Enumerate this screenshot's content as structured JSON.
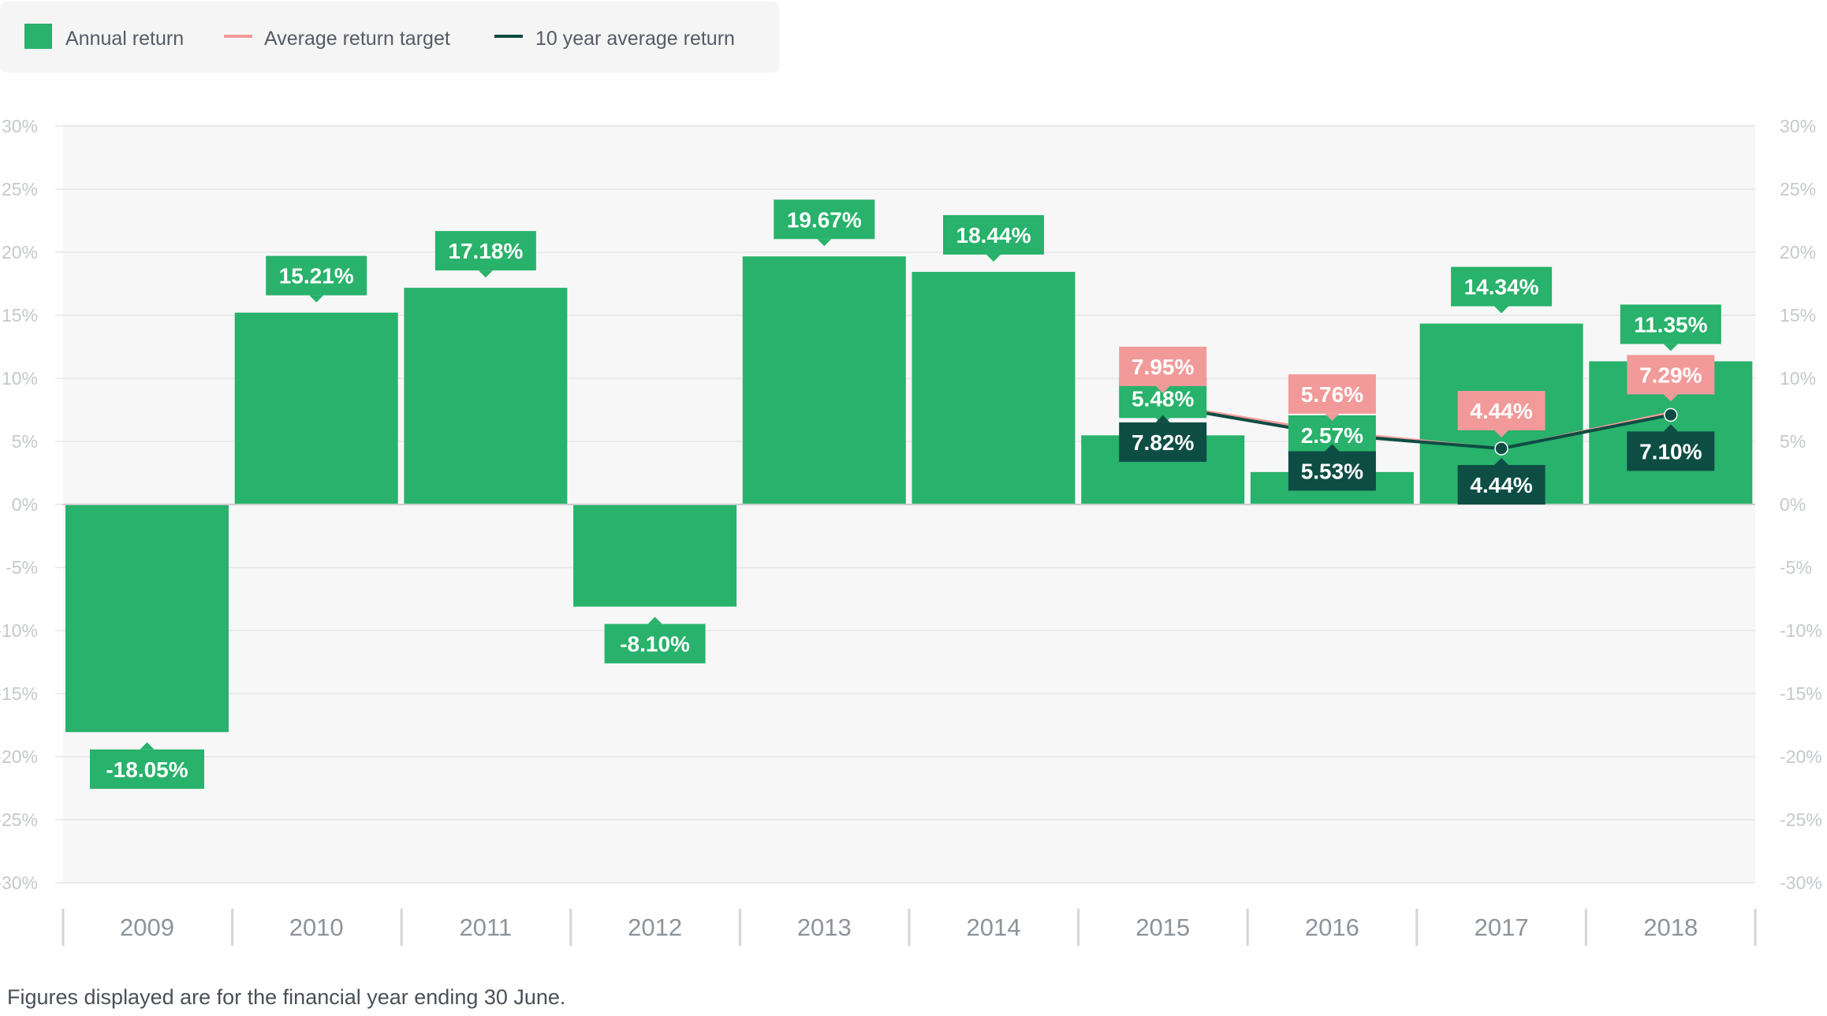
{
  "colors": {
    "bar": "#28b26b",
    "target": "#f29a9a",
    "average": "#0d4d44",
    "grid": "#e5e6e8",
    "plot_bg": "#f7f7f7",
    "legend_bg": "#f5f5f5"
  },
  "legend": {
    "items": [
      {
        "label": "Annual return",
        "marker": "square",
        "color": "#28b26b"
      },
      {
        "label": "Average return target",
        "marker": "line",
        "color": "#f29a9a"
      },
      {
        "label": "10 year average return",
        "marker": "line",
        "color": "#0d4d44"
      }
    ]
  },
  "footnote": "Figures displayed are for the financial year ending 30 June.",
  "chart_data": {
    "type": "bar",
    "categories": [
      "2009",
      "2010",
      "2011",
      "2012",
      "2013",
      "2014",
      "2015",
      "2016",
      "2017",
      "2018"
    ],
    "ylim": [
      -30,
      30
    ],
    "yticks": [
      30,
      25,
      20,
      15,
      10,
      5,
      0,
      -5,
      -10,
      -15,
      -20,
      -25,
      -30
    ],
    "ytick_suffix": "%",
    "grid": true,
    "dual_y_axis": true,
    "legend_position": "top-left",
    "series": [
      {
        "name": "Annual return",
        "type": "bar",
        "values": [
          -18.05,
          15.21,
          17.18,
          -8.1,
          19.67,
          18.44,
          5.48,
          2.57,
          14.34,
          11.35
        ],
        "labels": [
          "-18.05%",
          "15.21%",
          "17.18%",
          "-8.10%",
          "19.67%",
          "18.44%",
          "5.48%",
          "2.57%",
          "14.34%",
          "11.35%"
        ]
      },
      {
        "name": "Average return target",
        "type": "line",
        "values": [
          null,
          null,
          null,
          null,
          null,
          null,
          7.95,
          5.76,
          4.44,
          7.29
        ],
        "labels": [
          null,
          null,
          null,
          null,
          null,
          null,
          "7.95%",
          "5.76%",
          "4.44%",
          "7.29%"
        ]
      },
      {
        "name": "10 year average return",
        "type": "line",
        "values": [
          null,
          null,
          null,
          null,
          null,
          null,
          7.82,
          5.53,
          4.44,
          7.1
        ],
        "labels": [
          null,
          null,
          null,
          null,
          null,
          null,
          "7.82%",
          "5.53%",
          "4.44%",
          "7.10%"
        ]
      }
    ]
  }
}
